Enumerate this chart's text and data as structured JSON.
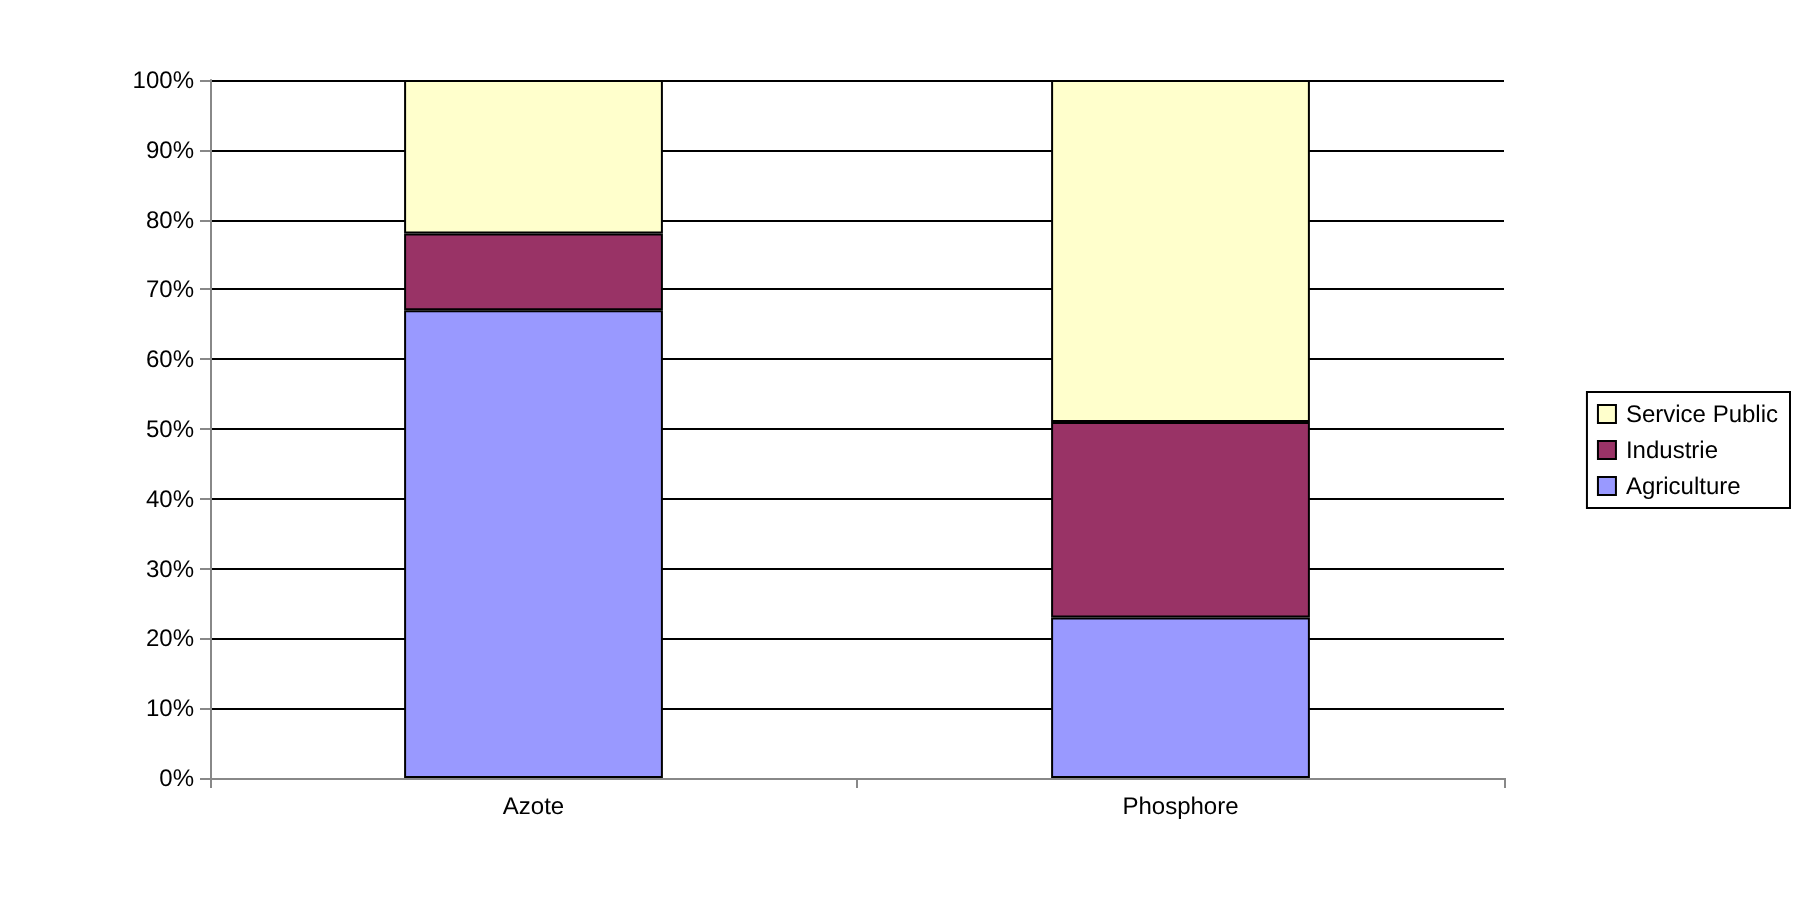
{
  "chart_data": {
    "type": "bar",
    "stacked": true,
    "categories": [
      "Azote",
      "Phosphore"
    ],
    "series": [
      {
        "name": "Agriculture",
        "color": "#9999ff",
        "values": [
          67,
          23
        ]
      },
      {
        "name": "Industrie",
        "color": "#993366",
        "values": [
          11,
          28
        ]
      },
      {
        "name": "Service Public",
        "color": "#ffffcc",
        "values": [
          22,
          49
        ]
      }
    ],
    "ylim": [
      0,
      100
    ],
    "yticks": [
      {
        "value": 0,
        "label": "0%"
      },
      {
        "value": 10,
        "label": "10%"
      },
      {
        "value": 20,
        "label": "20%"
      },
      {
        "value": 30,
        "label": "30%"
      },
      {
        "value": 40,
        "label": "40%"
      },
      {
        "value": 50,
        "label": "50%"
      },
      {
        "value": 60,
        "label": "60%"
      },
      {
        "value": 70,
        "label": "70%"
      },
      {
        "value": 80,
        "label": "80%"
      },
      {
        "value": 90,
        "label": "90%"
      },
      {
        "value": 100,
        "label": "100%"
      }
    ],
    "grid": "y",
    "legend": "right"
  }
}
